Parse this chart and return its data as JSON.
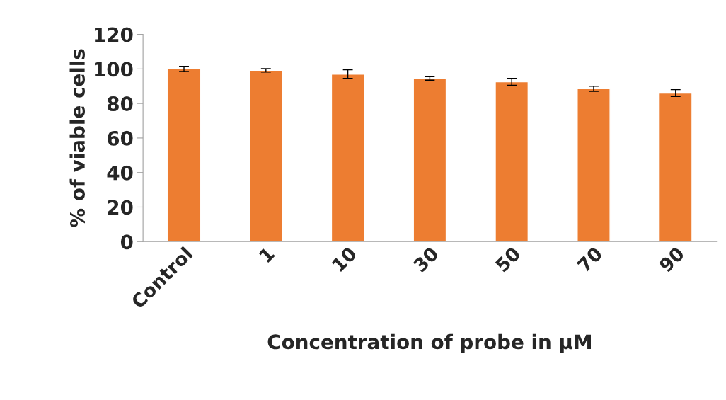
{
  "chart_data": {
    "type": "bar",
    "xlabel": "Concentration of probe in µM",
    "ylabel": "% of viable cells",
    "categories": [
      "Control",
      "1",
      "10",
      "30",
      "50",
      "70",
      "90"
    ],
    "values": [
      100,
      99.2,
      97,
      94.5,
      92.5,
      88.5,
      86
    ],
    "errors": [
      1.5,
      1,
      2.5,
      1,
      2,
      1.5,
      2
    ],
    "color": "#ed7d31",
    "ylim": [
      0,
      120
    ],
    "yticks": [
      0,
      20,
      40,
      60,
      80,
      100,
      120
    ],
    "grid": false,
    "legend": false
  }
}
